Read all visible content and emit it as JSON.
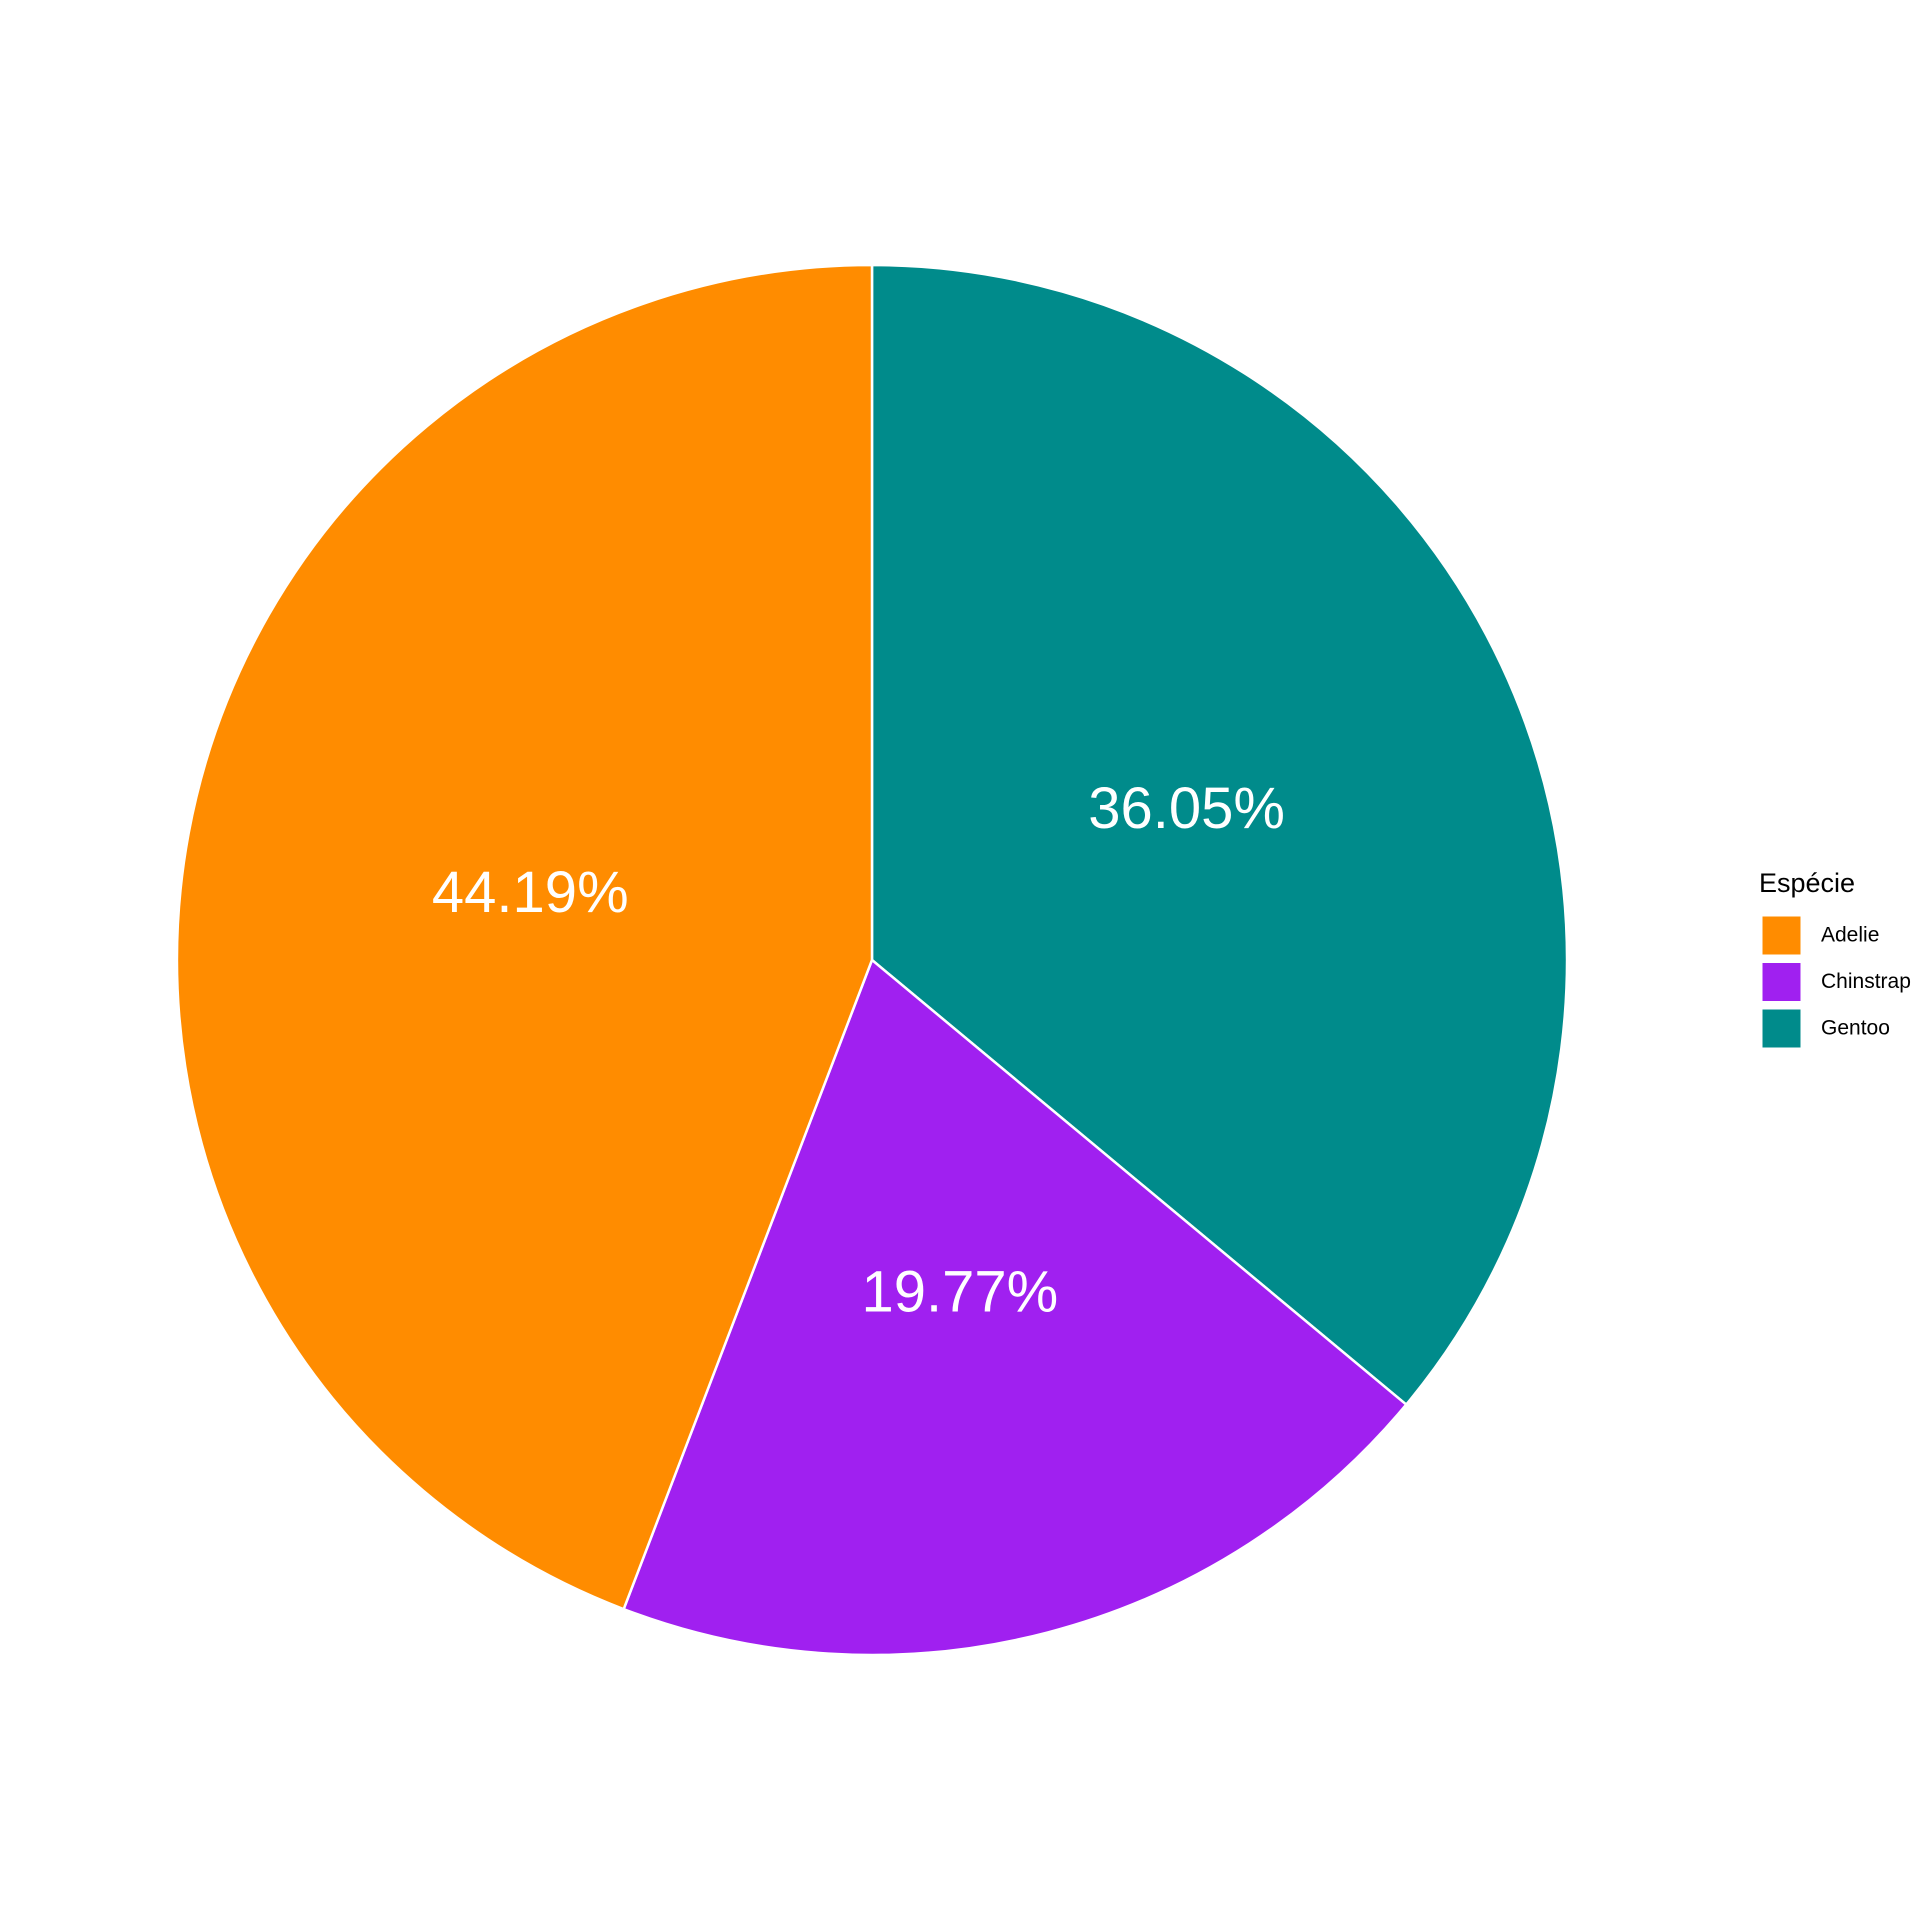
{
  "chart_data": {
    "type": "pie",
    "legend_title": "Espécie",
    "categories": [
      "Adelie",
      "Chinstrap",
      "Gentoo"
    ],
    "values": [
      44.19,
      19.77,
      36.05
    ],
    "value_labels": [
      "44.19%",
      "19.77%",
      "36.05%"
    ],
    "colors": [
      "#ff8c00",
      "#a020f0",
      "#008b8b"
    ],
    "legend": "right"
  }
}
